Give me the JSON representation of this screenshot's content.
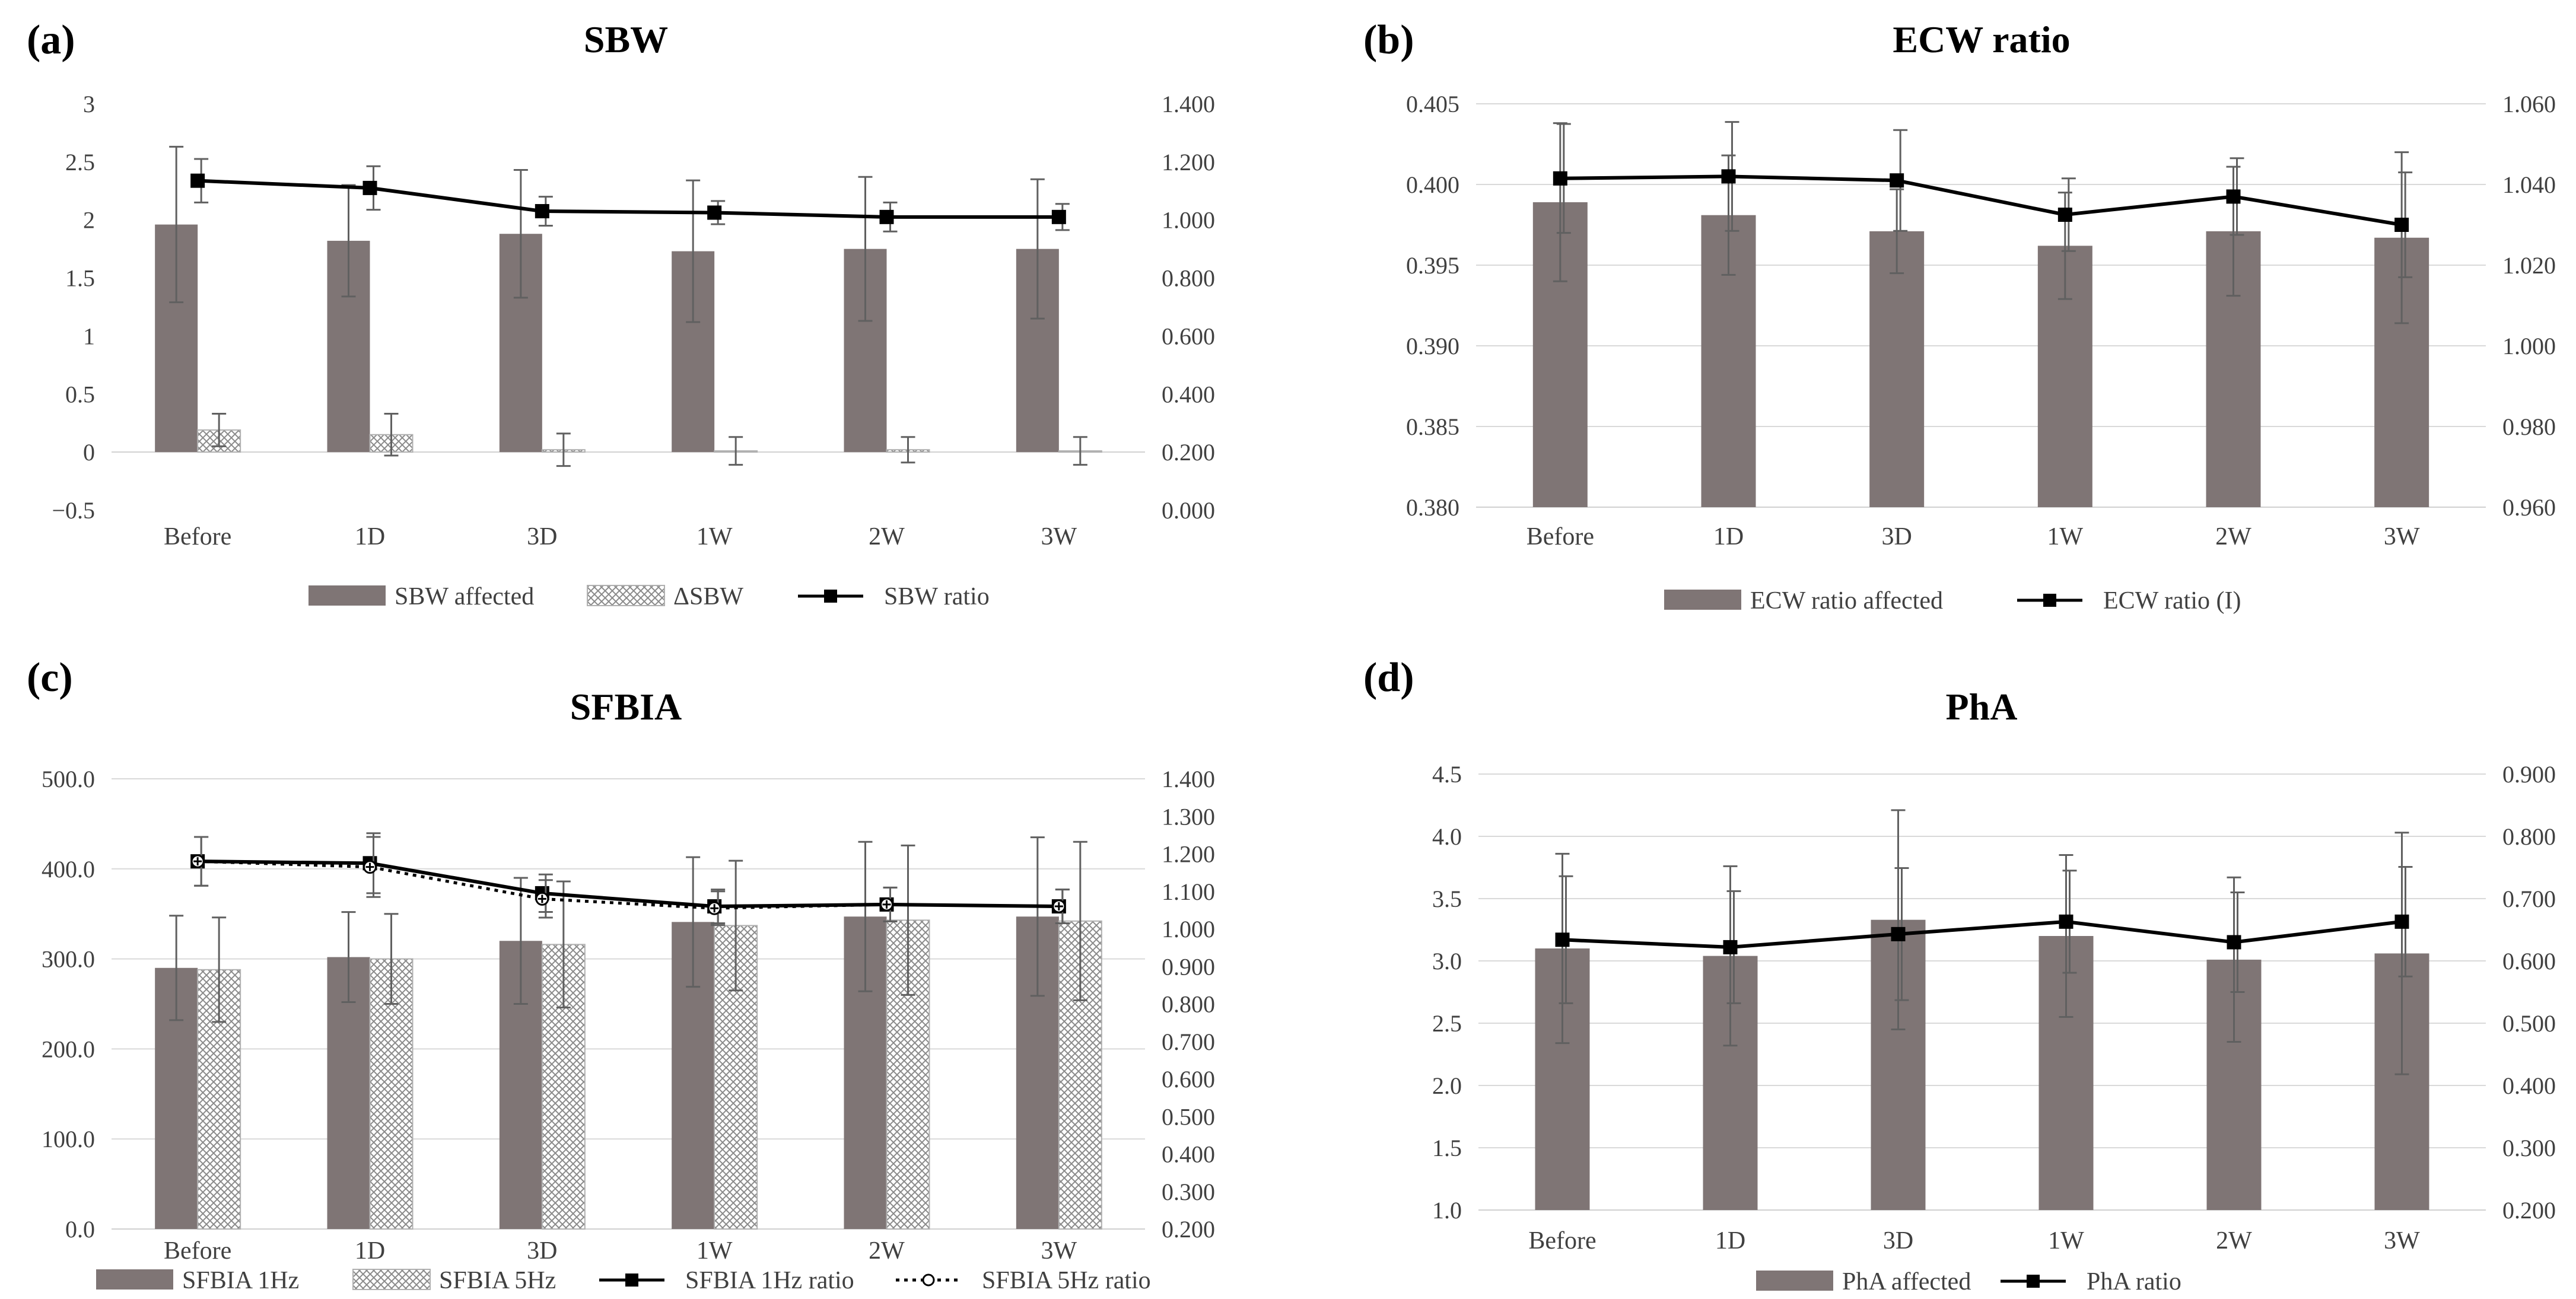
{
  "colors": {
    "bar_affected": "#7f7575",
    "bar_pattern": "#8a8a8a",
    "line": "#000000",
    "grid": "#d9d9d9",
    "error_bar": "#606060"
  },
  "chart_data": [
    {
      "panel": "(a)",
      "title": "SBW",
      "type": "bar",
      "categories": [
        "Before",
        "1D",
        "3D",
        "1W",
        "2W",
        "3W"
      ],
      "y_ticks": [
        "3",
        "2.5",
        "2",
        "1.5",
        "1",
        "0.5",
        "0",
        "−0.5"
      ],
      "y2_ticks": [
        "1.400",
        "1.200",
        "1.000",
        "0.800",
        "0.600",
        "0.400",
        "0.200",
        "0.000"
      ],
      "ylim": [
        -0.5,
        3
      ],
      "y2lim": [
        0,
        1.4
      ],
      "grid": false,
      "series": [
        {
          "name": "SBW affected",
          "kind": "bar",
          "axis": "left",
          "values": [
            1.96,
            1.82,
            1.88,
            1.73,
            1.75,
            1.75
          ],
          "error": [
            0.67,
            0.48,
            0.55,
            0.61,
            0.62,
            0.6
          ]
        },
        {
          "name": "ΔSBW",
          "kind": "bar-hatch",
          "axis": "left",
          "values": [
            0.19,
            0.15,
            0.02,
            0.01,
            0.02,
            0.01
          ],
          "error": [
            0.14,
            0.18,
            0.14,
            0.12,
            0.11,
            0.12
          ]
        },
        {
          "name": "SBW ratio",
          "kind": "line",
          "axis": "right",
          "marker": "square",
          "values": [
            1.135,
            1.11,
            1.03,
            1.025,
            1.01,
            1.01
          ],
          "error": [
            0.075,
            0.075,
            0.05,
            0.04,
            0.05,
            0.045
          ]
        }
      ],
      "legend": "bottom"
    },
    {
      "panel": "(b)",
      "title": "ECW ratio",
      "type": "bar",
      "categories": [
        "Before",
        "1D",
        "3D",
        "1W",
        "2W",
        "3W"
      ],
      "y_ticks": [
        "0.405",
        "0.400",
        "0.395",
        "0.390",
        "0.385",
        "0.380"
      ],
      "y2_ticks": [
        "1.060",
        "1.040",
        "1.020",
        "1.000",
        "0.980",
        "0.960"
      ],
      "ylim": [
        0.38,
        0.405
      ],
      "y2lim": [
        0.96,
        1.06
      ],
      "grid": true,
      "series": [
        {
          "name": "ECW ratio affected",
          "kind": "bar",
          "axis": "left",
          "values": [
            0.3989,
            0.3981,
            0.3971,
            0.3962,
            0.3971,
            0.3967
          ],
          "error": [
            0.0049,
            0.0037,
            0.0026,
            0.0033,
            0.004,
            0.0053
          ]
        },
        {
          "name": "ECW ratio (I)",
          "kind": "line",
          "axis": "right",
          "marker": "square",
          "values": [
            1.0415,
            1.042,
            1.041,
            1.0325,
            1.037,
            1.03
          ],
          "error": [
            0.0135,
            0.0135,
            0.0125,
            0.009,
            0.0095,
            0.013
          ]
        }
      ],
      "legend": "bottom"
    },
    {
      "panel": "(c)",
      "title": "SFBIA",
      "type": "bar",
      "categories": [
        "Before",
        "1D",
        "3D",
        "1W",
        "2W",
        "3W"
      ],
      "y_ticks": [
        "500.0",
        "400.0",
        "300.0",
        "200.0",
        "100.0",
        "0.0"
      ],
      "y2_ticks": [
        "1.400",
        "1.300",
        "1.200",
        "1.100",
        "1.000",
        "0.900",
        "0.800",
        "0.700",
        "0.600",
        "0.500",
        "0.400",
        "0.300",
        "0.200"
      ],
      "ylim": [
        0,
        500
      ],
      "y2lim": [
        0.2,
        1.4
      ],
      "grid": true,
      "series": [
        {
          "name": "SFBIA 1Hz",
          "kind": "bar",
          "axis": "left",
          "values": [
            290,
            302,
            320,
            341,
            347,
            347
          ],
          "error": [
            58,
            50,
            70,
            72,
            83,
            88
          ]
        },
        {
          "name": "SFBIA 5Hz",
          "kind": "bar-hatch",
          "axis": "left",
          "values": [
            288,
            300,
            316,
            337,
            343,
            342
          ],
          "error": [
            58,
            50,
            70,
            72,
            83,
            88
          ]
        },
        {
          "name": "SFBIA 1Hz ratio",
          "kind": "line",
          "axis": "right",
          "marker": "square",
          "values": [
            1.18,
            1.175,
            1.095,
            1.06,
            1.065,
            1.06
          ],
          "error": [
            0.065,
            0.08,
            0.05,
            0.045,
            0.045,
            0.045
          ]
        },
        {
          "name": "SFBIA 5Hz ratio",
          "kind": "line-dotted",
          "axis": "right",
          "marker": "diamond",
          "values": [
            1.18,
            1.165,
            1.08,
            1.055,
            1.065,
            1.06
          ],
          "error": [
            0.065,
            0.08,
            0.05,
            0.045,
            0.045,
            0.045
          ]
        }
      ],
      "legend": "bottom"
    },
    {
      "panel": "(d)",
      "title": "PhA",
      "type": "bar",
      "categories": [
        "Before",
        "1D",
        "3D",
        "1W",
        "2W",
        "3W"
      ],
      "y_ticks": [
        "4.5",
        "4.0",
        "3.5",
        "3.0",
        "2.5",
        "2.0",
        "1.5",
        "1.0"
      ],
      "y2_ticks": [
        "0.900",
        "0.800",
        "0.700",
        "0.600",
        "0.500",
        "0.400",
        "0.300",
        "0.200"
      ],
      "ylim": [
        1,
        4.5
      ],
      "y2lim": [
        0.2,
        0.9
      ],
      "grid": true,
      "series": [
        {
          "name": "PhA affected",
          "kind": "bar",
          "axis": "left",
          "values": [
            3.1,
            3.04,
            3.33,
            3.2,
            3.01,
            3.06
          ],
          "error": [
            0.76,
            0.72,
            0.88,
            0.65,
            0.66,
            0.97
          ]
        },
        {
          "name": "PhA ratio",
          "kind": "line",
          "axis": "right",
          "marker": "square",
          "values": [
            0.634,
            0.622,
            0.643,
            0.663,
            0.63,
            0.663
          ],
          "error": [
            0.102,
            0.09,
            0.106,
            0.082,
            0.08,
            0.088
          ]
        }
      ],
      "legend": "bottom"
    }
  ]
}
